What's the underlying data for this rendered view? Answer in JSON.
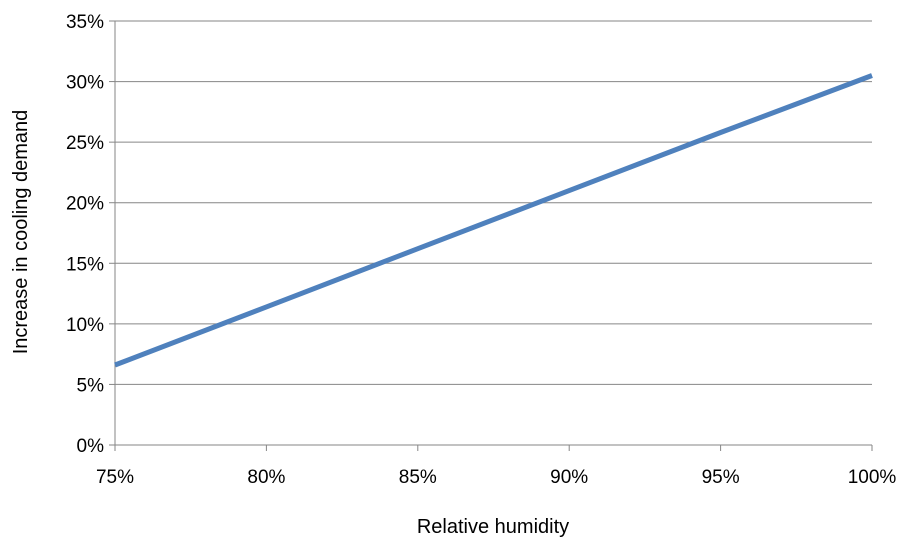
{
  "chart_data": {
    "type": "line",
    "title": "",
    "xlabel": "Relative humidity",
    "ylabel": "Increase in cooling demand",
    "xlim": [
      0.75,
      1.0
    ],
    "ylim": [
      0,
      0.35
    ],
    "x_ticks": [
      0.75,
      0.8,
      0.85,
      0.9,
      0.95,
      1.0
    ],
    "x_tick_labels": [
      "75%",
      "80%",
      "85%",
      "90%",
      "95%",
      "100%"
    ],
    "y_ticks": [
      0,
      0.05,
      0.1,
      0.15,
      0.2,
      0.25,
      0.3,
      0.35
    ],
    "y_tick_labels": [
      "0%",
      "5%",
      "10%",
      "15%",
      "20%",
      "25%",
      "30%",
      "35%"
    ],
    "grid": "horizontal",
    "legend": "none",
    "series": [
      {
        "x": [
          0.75,
          0.8,
          0.85,
          0.9,
          0.95,
          1.0
        ],
        "y": [
          0.066,
          0.114,
          0.162,
          0.21,
          0.258,
          0.305
        ],
        "color": "#4F81BD"
      }
    ]
  }
}
